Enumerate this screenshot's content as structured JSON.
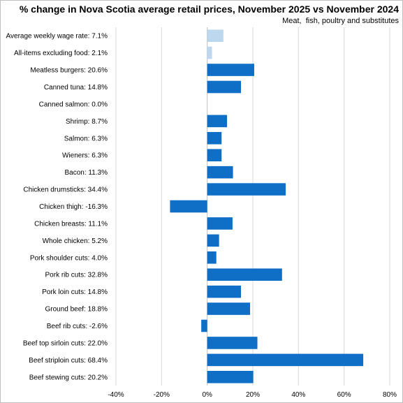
{
  "chart_data": {
    "type": "bar",
    "orientation": "horizontal",
    "title": "% change in Nova Scotia average retail prices, November 2025 vs November 2024",
    "subtitle": "Meat,  fish, poultry and substitutes",
    "xlabel": "",
    "ylabel": "",
    "xlim": [
      -40,
      80
    ],
    "xticks": [
      -40,
      -20,
      0,
      20,
      40,
      60,
      80
    ],
    "tick_labels": [
      "-40%",
      "-20%",
      "0%",
      "20%",
      "40%",
      "60%",
      "80%"
    ],
    "grid": true,
    "legend": "none",
    "colors": {
      "highlight": "#bdd7ee",
      "default": "#0f6fc6",
      "grid": "#d9d9d9",
      "zero_axis": "#bfbfbf"
    },
    "categories": [
      "Average weekly wage rate: 7.1%",
      "All-items excluding food: 2.1%",
      "Meatless burgers: 20.6%",
      "Canned tuna: 14.8%",
      "Canned salmon: 0.0%",
      "Shrimp: 8.7%",
      "Salmon: 6.3%",
      "Wieners: 6.3%",
      "Bacon: 11.3%",
      "Chicken drumsticks: 34.4%",
      "Chicken thigh: -16.3%",
      "Chicken breasts: 11.1%",
      "Whole chicken: 5.2%",
      "Pork shoulder cuts: 4.0%",
      "Pork rib cuts: 32.8%",
      "Pork loin cuts: 14.8%",
      "Ground beef: 18.8%",
      "Beef rib cuts: -2.6%",
      "Beef top sirloin cuts: 22.0%",
      "Beef striploin cuts: 68.4%",
      "Beef stewing cuts: 20.2%"
    ],
    "values": [
      7.1,
      2.1,
      20.6,
      14.8,
      0.0,
      8.7,
      6.3,
      6.3,
      11.3,
      34.4,
      -16.3,
      11.1,
      5.2,
      4.0,
      32.8,
      14.8,
      18.8,
      -2.6,
      22.0,
      68.4,
      20.2
    ],
    "highlighted": [
      0,
      1
    ]
  }
}
